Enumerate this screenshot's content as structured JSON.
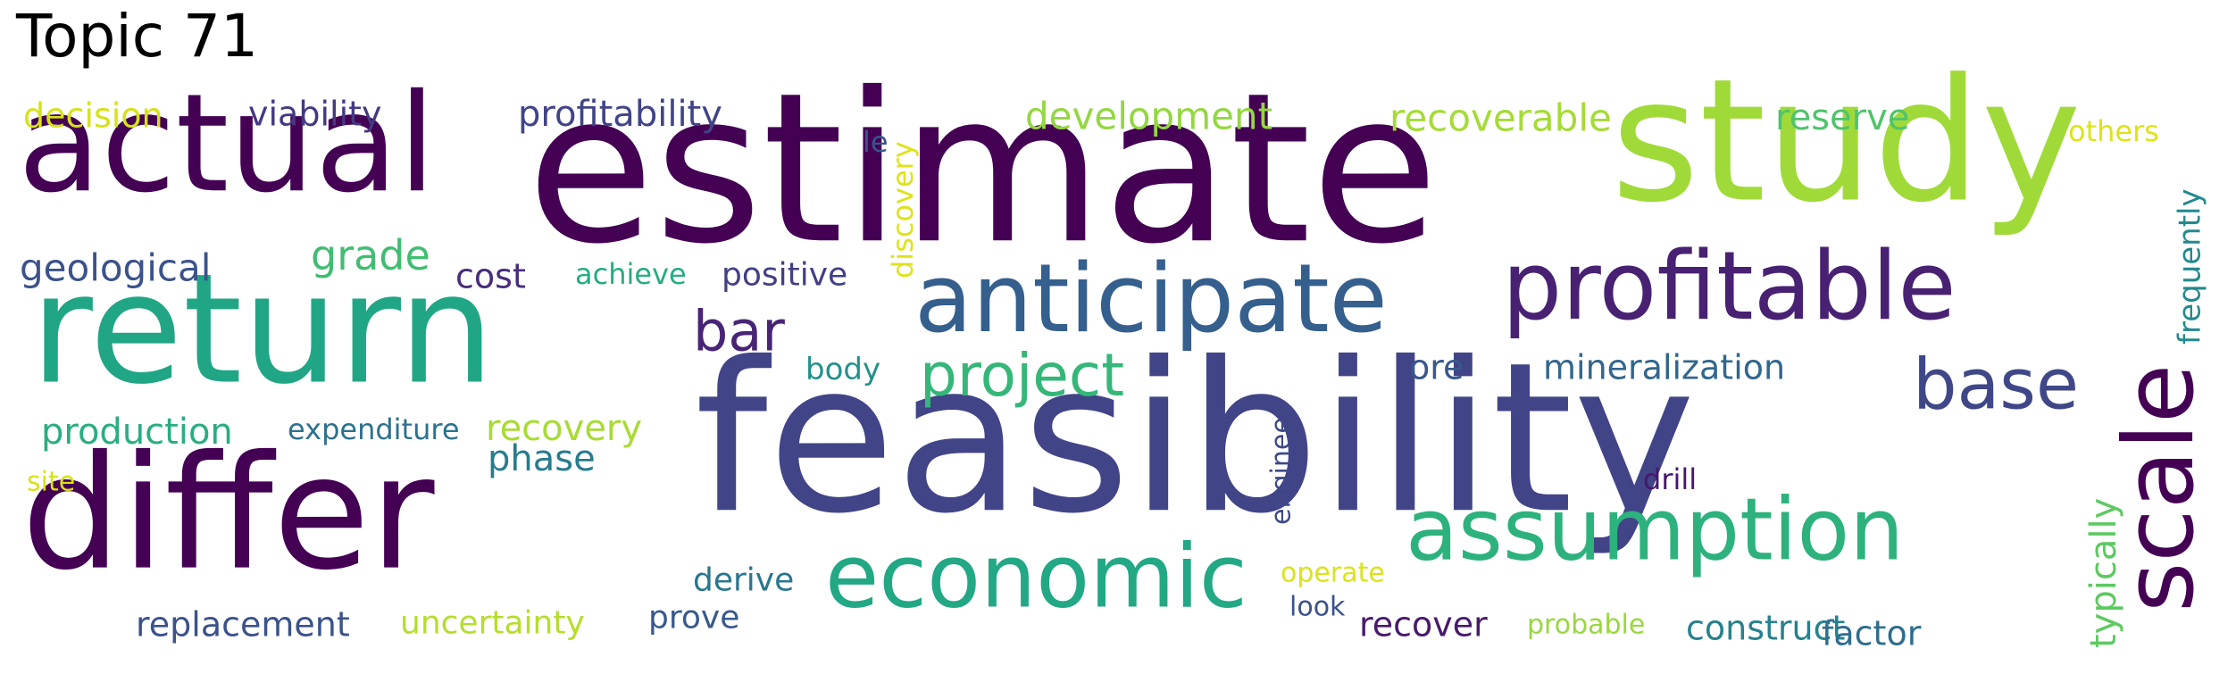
{
  "title": "Topic 71",
  "words": [
    {
      "text": "estimate",
      "color": "#440154"
    },
    {
      "text": "feasibility",
      "color": "#414487"
    },
    {
      "text": "study",
      "color": "#a0da39"
    },
    {
      "text": "actual",
      "color": "#440154"
    },
    {
      "text": "return",
      "color": "#21a685"
    },
    {
      "text": "differ",
      "color": "#440154"
    },
    {
      "text": "anticipate",
      "color": "#355f8d"
    },
    {
      "text": "profitable",
      "color": "#482173"
    },
    {
      "text": "economic",
      "color": "#22a884"
    },
    {
      "text": "assumption",
      "color": "#2db27d"
    },
    {
      "text": "scale",
      "color": "#440154"
    },
    {
      "text": "base",
      "color": "#3f4788"
    },
    {
      "text": "project",
      "color": "#35b779"
    },
    {
      "text": "bar",
      "color": "#482475"
    },
    {
      "text": "development",
      "color": "#93d741"
    },
    {
      "text": "recoverable",
      "color": "#a5db36"
    },
    {
      "text": "reserve",
      "color": "#50c46a"
    },
    {
      "text": "profitability",
      "color": "#414487"
    },
    {
      "text": "viability",
      "color": "#443983"
    },
    {
      "text": "decision",
      "color": "#d5e21a"
    },
    {
      "text": "geological",
      "color": "#3b528b"
    },
    {
      "text": "grade",
      "color": "#40bd72"
    },
    {
      "text": "cost",
      "color": "#472d7b"
    },
    {
      "text": "achieve",
      "color": "#25ac82"
    },
    {
      "text": "positive",
      "color": "#423f85"
    },
    {
      "text": "discovery",
      "color": "#dde318"
    },
    {
      "text": "le",
      "color": "#3a548c"
    },
    {
      "text": "others",
      "color": "#dde318"
    },
    {
      "text": "frequently",
      "color": "#23898e"
    },
    {
      "text": "mineralization",
      "color": "#31678e"
    },
    {
      "text": "ore",
      "color": "#38588c"
    },
    {
      "text": "body",
      "color": "#21918c"
    },
    {
      "text": "production",
      "color": "#28ae80"
    },
    {
      "text": "expenditure",
      "color": "#2c728e"
    },
    {
      "text": "recovery",
      "color": "#a8db34"
    },
    {
      "text": "phase",
      "color": "#287c8e"
    },
    {
      "text": "site",
      "color": "#d8e219"
    },
    {
      "text": "engineer",
      "color": "#3e4989"
    },
    {
      "text": "drill",
      "color": "#481769"
    },
    {
      "text": "typically",
      "color": "#5ec962"
    },
    {
      "text": "derive",
      "color": "#2a768e"
    },
    {
      "text": "operate",
      "color": "#dae319"
    },
    {
      "text": "look",
      "color": "#3b518b"
    },
    {
      "text": "replacement",
      "color": "#3b528b"
    },
    {
      "text": "uncertainty",
      "color": "#b5de2b"
    },
    {
      "text": "prove",
      "color": "#38598c"
    },
    {
      "text": "recover",
      "color": "#481a6c"
    },
    {
      "text": "probable",
      "color": "#98d83e"
    },
    {
      "text": "construct",
      "color": "#26818e"
    },
    {
      "text": "factor",
      "color": "#2e6e8e"
    }
  ]
}
